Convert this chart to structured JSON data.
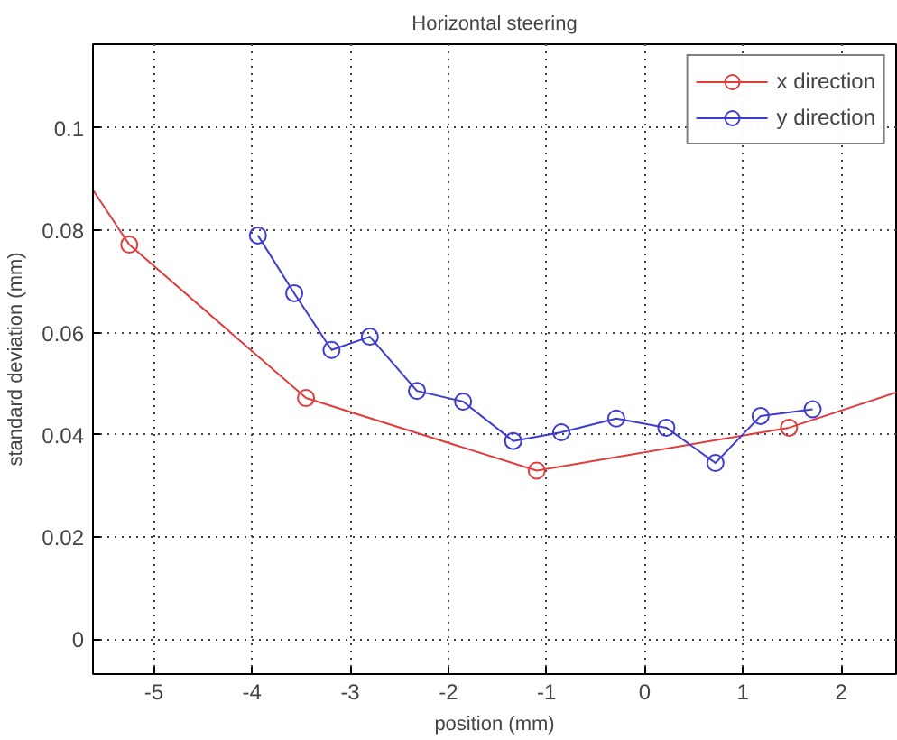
{
  "chart_data": {
    "type": "line",
    "title": "Horizontal steering",
    "xlabel": "position (mm)",
    "ylabel": "standard deviation (mm)",
    "xlim": [
      -5.62,
      2.56
    ],
    "ylim": [
      -0.0068,
      0.1164
    ],
    "xticks": [
      -5,
      -4,
      -3,
      -2,
      -1,
      0,
      1,
      2
    ],
    "yticks": [
      0,
      0.02,
      0.04,
      0.06,
      0.08,
      0.1
    ],
    "grid": true,
    "legend": "top right",
    "marker": "circle",
    "line_style": "solid",
    "series": [
      {
        "name": "x direction",
        "color": "#e03c3c",
        "x": [
          -5.25,
          -3.45,
          -1.1,
          1.47
        ],
        "values": [
          0.0772,
          0.0472,
          0.033,
          0.0414
        ]
      },
      {
        "name": "y direction",
        "color": "#3c3cd0",
        "x": [
          -3.94,
          -3.57,
          -3.19,
          -2.8,
          -2.32,
          -1.85,
          -1.34,
          -0.85,
          -0.29,
          0.22,
          0.72,
          1.18,
          1.71
        ],
        "values": [
          0.079,
          0.0677,
          0.0566,
          0.0592,
          0.0486,
          0.0465,
          0.0388,
          0.0405,
          0.0432,
          0.0414,
          0.0345,
          0.0437,
          0.045
        ]
      },
      {
        "color": "#e03c3c",
        "marker": "none",
        "x": [
          -5.62,
          -5.25
        ],
        "values": [
          0.0879,
          0.0772
        ]
      },
      {
        "color": "#e03c3c",
        "marker": "none",
        "x": [
          1.47,
          2.56
        ],
        "values": [
          0.0414,
          0.0483
        ]
      }
    ]
  }
}
